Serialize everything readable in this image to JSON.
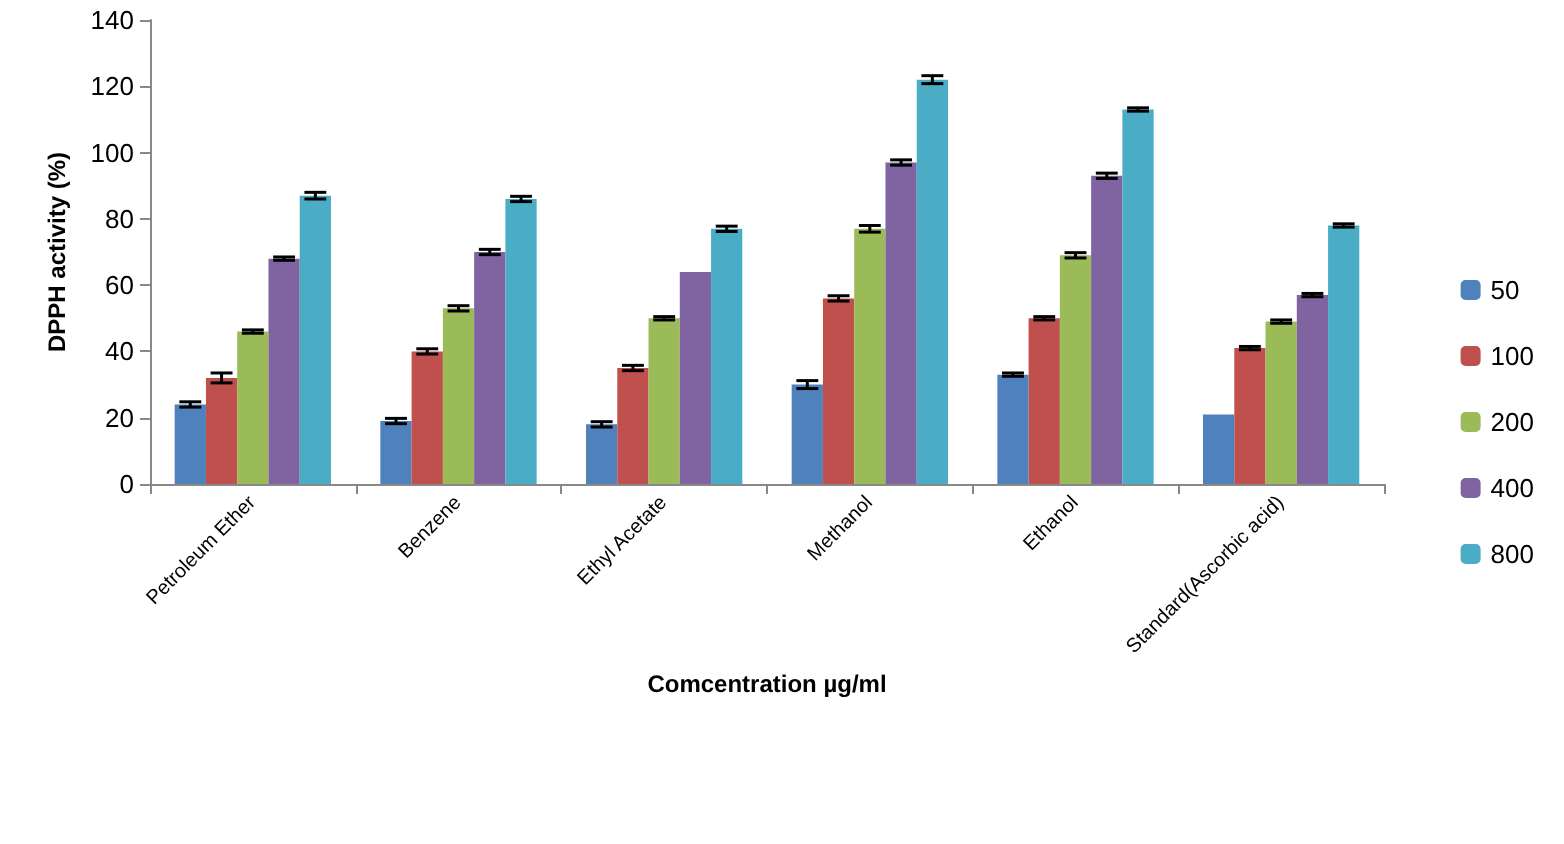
{
  "chart_data": {
    "type": "bar",
    "xlabel": "Comcentration µg/ml",
    "ylabel": "DPPH activity (%)",
    "categories": [
      "Petroleum Ether",
      "Benzene",
      "Ethyl Acetate",
      "Methanol",
      "Ethanol",
      "Standard(Ascorbic acid)"
    ],
    "series": [
      {
        "name": "50",
        "color": "#4f81bd",
        "values": [
          24,
          19,
          18,
          30,
          33,
          21
        ],
        "errors": [
          0.8,
          0.8,
          0.8,
          1.2,
          0.5,
          null
        ]
      },
      {
        "name": "100",
        "color": "#c0504d",
        "values": [
          32,
          40,
          35,
          56,
          50,
          41
        ],
        "errors": [
          1.5,
          0.8,
          0.8,
          0.8,
          0.5,
          0.5
        ]
      },
      {
        "name": "200",
        "color": "#9bbb59",
        "values": [
          46,
          53,
          50,
          77,
          69,
          49
        ],
        "errors": [
          0.5,
          0.8,
          0.5,
          1,
          0.8,
          0.5
        ]
      },
      {
        "name": "400",
        "color": "#8064a2",
        "values": [
          68,
          70,
          64,
          97,
          93,
          57
        ],
        "errors": [
          0.5,
          0.8,
          null,
          0.8,
          0.8,
          0.5
        ]
      },
      {
        "name": "800",
        "color": "#4bacc6",
        "values": [
          87,
          86,
          77,
          122,
          113,
          78
        ],
        "errors": [
          1,
          0.8,
          0.8,
          1.2,
          0.5,
          0.5
        ]
      }
    ],
    "ylim": [
      0,
      140
    ],
    "yticks": [
      0,
      20,
      40,
      60,
      80,
      100,
      120,
      140
    ],
    "grid": false,
    "legend": "right"
  }
}
